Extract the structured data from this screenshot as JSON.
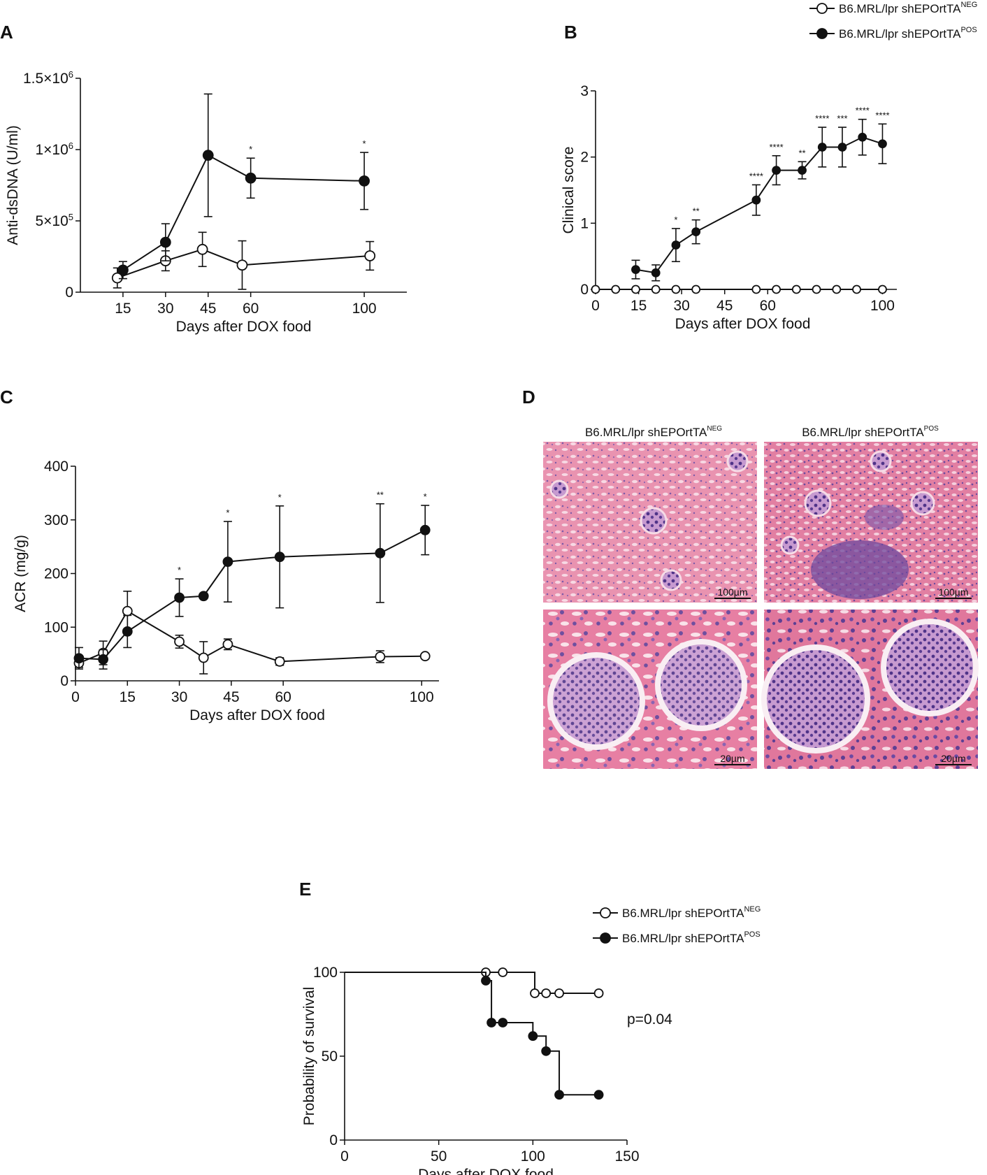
{
  "colors": {
    "open_marker": "#ffffff",
    "filled_marker": "#111111",
    "line": "#111111",
    "tissue_pink": "#e58aa8",
    "tissue_purple": "#6d4a9e"
  },
  "legend": [
    {
      "base": "B6.MRL/lpr shEPOrtTA",
      "sup": "NEG",
      "marker": "open"
    },
    {
      "base": "B6.MRL/lpr shEPOrtTA",
      "sup": "POS",
      "marker": "filled"
    }
  ],
  "chart_data": [
    {
      "panel": "A",
      "type": "line",
      "xlabel": "Days after DOX food",
      "ylabel": "Anti-dsDNA (U/ml)",
      "xlim": [
        0,
        115
      ],
      "ylim": [
        0,
        1500000
      ],
      "x_ticks": [
        15,
        30,
        45,
        60,
        100
      ],
      "y_ticks": [
        {
          "value": 0,
          "base": "0",
          "sup": ""
        },
        {
          "value": 500000,
          "base": "5×10",
          "sup": "5"
        },
        {
          "value": 1000000,
          "base": "1×10",
          "sup": "6"
        },
        {
          "value": 1500000,
          "base": "1.5×10",
          "sup": "6"
        }
      ],
      "series": [
        {
          "name": "B6.MRL/lpr shEPOrtTA NEG",
          "marker": "open",
          "x": [
            13,
            30,
            43,
            57,
            102
          ],
          "y": [
            100000,
            220000,
            300000,
            190000,
            255000
          ],
          "err": [
            70000,
            70000,
            120000,
            170000,
            100000
          ]
        },
        {
          "name": "B6.MRL/lpr shEPOrtTA POS",
          "marker": "filled",
          "x": [
            15,
            30,
            45,
            60,
            100
          ],
          "y": [
            155000,
            350000,
            960000,
            800000,
            780000
          ],
          "err": [
            60000,
            130000,
            430000,
            140000,
            200000
          ]
        }
      ],
      "annotations": [
        {
          "x": 60,
          "label": "*"
        },
        {
          "x": 100,
          "label": "*"
        }
      ]
    },
    {
      "panel": "B",
      "type": "line",
      "xlabel": "Days after DOX food",
      "ylabel": "Clinical score",
      "xlim": [
        0,
        105
      ],
      "ylim": [
        0,
        3
      ],
      "x_ticks": [
        0,
        15,
        30,
        45,
        60,
        100
      ],
      "y_ticks": [
        0,
        1,
        2,
        3
      ],
      "series": [
        {
          "name": "B6.MRL/lpr shEPOrtTA NEG",
          "marker": "open",
          "x": [
            0,
            7,
            14,
            21,
            28,
            35,
            56,
            63,
            70,
            77,
            84,
            91,
            100
          ],
          "y": [
            0,
            0,
            0,
            0,
            0,
            0,
            0,
            0,
            0,
            0,
            0,
            0,
            0
          ]
        },
        {
          "name": "B6.MRL/lpr shEPOrtTA POS",
          "marker": "filled",
          "x": [
            14,
            21,
            28,
            35,
            56,
            63,
            72,
            79,
            86,
            93,
            100
          ],
          "y": [
            0.3,
            0.25,
            0.67,
            0.87,
            1.35,
            1.8,
            1.8,
            2.15,
            2.15,
            2.3,
            2.2
          ],
          "err": [
            0.14,
            0.12,
            0.25,
            0.18,
            0.23,
            0.22,
            0.13,
            0.3,
            0.3,
            0.27,
            0.3
          ]
        }
      ],
      "annotations": [
        {
          "x": 28,
          "label": "*"
        },
        {
          "x": 35,
          "label": "**"
        },
        {
          "x": 56,
          "label": "****"
        },
        {
          "x": 63,
          "label": "****"
        },
        {
          "x": 72,
          "label": "**"
        },
        {
          "x": 79,
          "label": "****"
        },
        {
          "x": 86,
          "label": "***"
        },
        {
          "x": 93,
          "label": "****"
        },
        {
          "x": 100,
          "label": "****"
        }
      ]
    },
    {
      "panel": "C",
      "type": "line",
      "xlabel": "Days after DOX food",
      "ylabel": "ACR (mg/g)",
      "xlim": [
        0,
        105
      ],
      "ylim": [
        0,
        400
      ],
      "x_ticks": [
        0,
        15,
        30,
        45,
        60,
        100
      ],
      "y_ticks": [
        0,
        100,
        200,
        300,
        400
      ],
      "series": [
        {
          "name": "B6.MRL/lpr shEPOrtTA NEG",
          "marker": "open",
          "x": [
            1,
            8,
            15,
            30,
            37,
            44,
            59,
            88,
            101
          ],
          "y": [
            33,
            52,
            130,
            73,
            43,
            68,
            36,
            45,
            46
          ],
          "err": [
            8,
            22,
            37,
            12,
            30,
            10,
            7,
            11,
            3
          ]
        },
        {
          "name": "B6.MRL/lpr shEPOrtTA POS",
          "marker": "filled",
          "x": [
            1,
            8,
            15,
            30,
            37,
            44,
            59,
            88,
            101
          ],
          "y": [
            42,
            40,
            92,
            155,
            158,
            222,
            231,
            238,
            281
          ],
          "err": [
            20,
            18,
            30,
            35,
            0,
            75,
            95,
            92,
            46
          ]
        }
      ],
      "annotations": [
        {
          "x": 30,
          "label": "*"
        },
        {
          "x": 44,
          "label": "*"
        },
        {
          "x": 59,
          "label": "*"
        },
        {
          "x": 88,
          "label": "**"
        },
        {
          "x": 101,
          "label": "*"
        }
      ]
    },
    {
      "panel": "E",
      "type": "line",
      "xlabel": "Days after DOX food",
      "ylabel": "Probability of survival",
      "xlim": [
        0,
        150
      ],
      "ylim": [
        0,
        100
      ],
      "x_ticks": [
        0,
        50,
        100,
        150
      ],
      "y_ticks": [
        0,
        50,
        100
      ],
      "annotation_text": "p=0.04",
      "series": [
        {
          "name": "B6.MRL/lpr shEPOrtTA NEG",
          "marker": "open",
          "step_x": [
            0,
            101,
            101,
            135
          ],
          "step_y": [
            100,
            100,
            87.5,
            87.5
          ],
          "x": [
            75,
            84,
            101,
            107,
            114,
            135
          ],
          "y": [
            100,
            100,
            87.5,
            87.5,
            87.5,
            87.5
          ]
        },
        {
          "name": "B6.MRL/lpr shEPOrtTA POS",
          "marker": "filled",
          "step_x": [
            0,
            75,
            75,
            78,
            78,
            100,
            100,
            107,
            107,
            114,
            114,
            135
          ],
          "step_y": [
            100,
            100,
            95,
            95,
            70,
            70,
            62,
            62,
            53,
            53,
            27,
            27
          ],
          "x": [
            75,
            78,
            84,
            100,
            107,
            114,
            135
          ],
          "y": [
            95,
            70,
            70,
            62,
            53,
            27,
            27
          ]
        }
      ]
    }
  ],
  "panel_d": {
    "letter": "D",
    "columns": [
      {
        "base": "B6.MRL/lpr shEPOrtTA",
        "sup": "NEG"
      },
      {
        "base": "B6.MRL/lpr shEPOrtTA",
        "sup": "POS"
      }
    ],
    "scalebars": [
      "100µm",
      "100µm",
      "20µm",
      "20µm"
    ]
  }
}
